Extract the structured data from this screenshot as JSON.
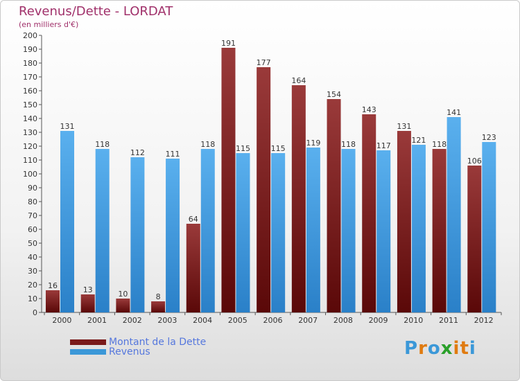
{
  "chart_data": {
    "type": "bar",
    "title": "Revenus/Dette - LORDAT",
    "subtitle": "(en milliers d'€)",
    "categories": [
      "2000",
      "2001",
      "2002",
      "2003",
      "2004",
      "2005",
      "2006",
      "2007",
      "2008",
      "2009",
      "2010",
      "2011",
      "2012"
    ],
    "series": [
      {
        "name": "Montant de la Dette",
        "values": [
          16,
          13,
          10,
          8,
          64,
          191,
          177,
          164,
          154,
          143,
          131,
          118,
          106
        ],
        "color": "#7a1a1a"
      },
      {
        "name": "Revenus",
        "values": [
          131,
          118,
          112,
          111,
          118,
          115,
          115,
          119,
          118,
          117,
          121,
          141,
          123
        ],
        "color": "#3b98d8"
      }
    ],
    "ylim": [
      0,
      200
    ],
    "ytick_step": 10,
    "grid": false,
    "legend_position": "bottom-left"
  },
  "logo": {
    "letters": [
      "P",
      "r",
      "o",
      "x",
      "i",
      "t",
      "i"
    ],
    "colors": [
      "#3b98d8",
      "#e07b10",
      "#3b98d8",
      "#2aa02a",
      "#e07b10",
      "#e07b10",
      "#3b98d8"
    ]
  }
}
